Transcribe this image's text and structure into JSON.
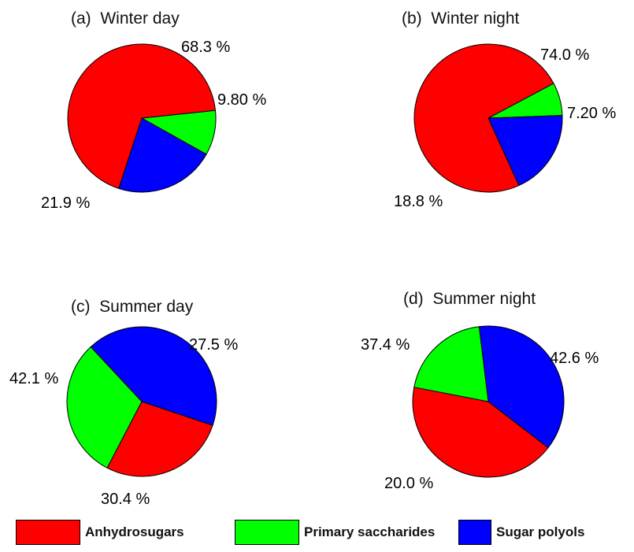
{
  "chart_data": [
    {
      "type": "pie",
      "title": "(a)  Winter day",
      "slices": [
        {
          "name": "Anhydrosugars",
          "value": 68.3,
          "label": "68.3 %"
        },
        {
          "name": "Primary saccharides",
          "value": 9.8,
          "label": "9.80 %"
        },
        {
          "name": "Sugar polyols",
          "value": 21.9,
          "label": "21.9 %"
        }
      ]
    },
    {
      "type": "pie",
      "title": "(b)  Winter night",
      "slices": [
        {
          "name": "Anhydrosugars",
          "value": 74.0,
          "label": "74.0 %"
        },
        {
          "name": "Primary saccharides",
          "value": 7.2,
          "label": "7.20 %"
        },
        {
          "name": "Sugar polyols",
          "value": 18.8,
          "label": "18.8 %"
        }
      ]
    },
    {
      "type": "pie",
      "title": "(c)  Summer day",
      "slices": [
        {
          "name": "Anhydrosugars",
          "value": 27.5,
          "label": "27.5 %"
        },
        {
          "name": "Primary saccharides",
          "value": 30.4,
          "label": "30.4 %"
        },
        {
          "name": "Sugar polyols",
          "value": 42.1,
          "label": "42.1 %"
        }
      ]
    },
    {
      "type": "pie",
      "title": "(d)  Summer night",
      "slices": [
        {
          "name": "Anhydrosugars",
          "value": 42.6,
          "label": "42.6 %"
        },
        {
          "name": "Primary saccharides",
          "value": 20.0,
          "label": "20.0 %"
        },
        {
          "name": "Sugar polyols",
          "value": 37.4,
          "label": "37.4 %"
        }
      ]
    }
  ],
  "legend": {
    "placement": "bottom",
    "items": [
      {
        "name": "Anhydrosugars",
        "color": "#ff0000"
      },
      {
        "name": "Primary saccharides",
        "color": "#00ff00"
      },
      {
        "name": "Sugar polyols",
        "color": "#0000ff"
      }
    ]
  }
}
